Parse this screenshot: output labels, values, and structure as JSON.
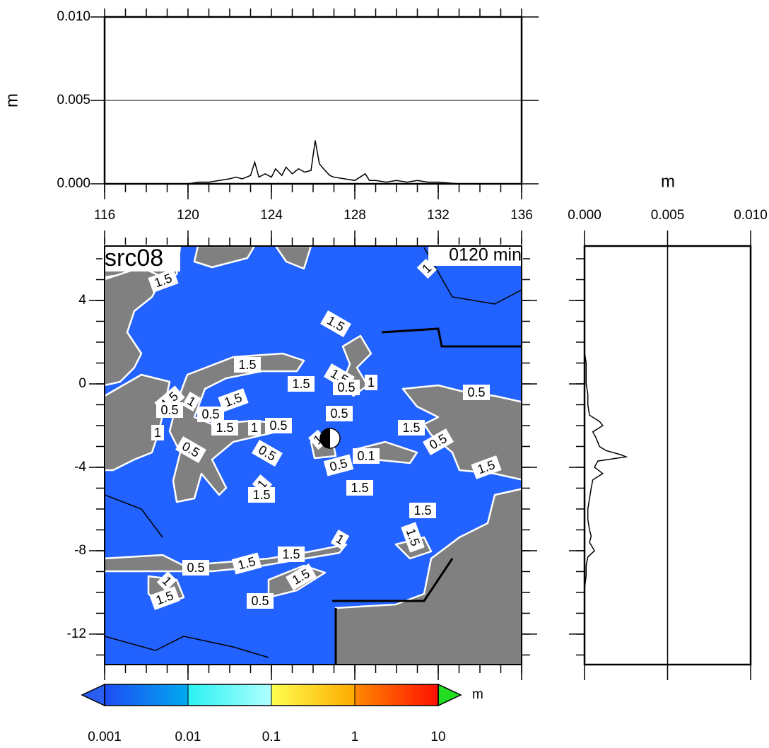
{
  "chart_data": [
    {
      "type": "line",
      "ylabel": "m",
      "color": "#000000",
      "grid": true,
      "x": [
        116,
        120,
        120.5,
        121,
        121.5,
        122,
        122.3,
        122.6,
        123,
        123.2,
        123.4,
        123.7,
        124,
        124.2,
        124.5,
        124.7,
        125,
        125.3,
        125.6,
        125.9,
        126.1,
        126.3,
        126.5,
        126.8,
        127,
        127.5,
        128,
        128.5,
        128.7,
        129,
        129.5,
        130,
        130.5,
        131,
        131.5,
        132,
        133,
        136
      ],
      "values": [
        0,
        0,
        0.0001,
        0.0001,
        0.0002,
        0.0003,
        0.0004,
        0.0003,
        0.0005,
        0.0013,
        0.0004,
        0.0006,
        0.0004,
        0.0009,
        0.0005,
        0.001,
        0.0006,
        0.0009,
        0.0007,
        0.0008,
        0.0026,
        0.0012,
        0.0009,
        0.0005,
        0.0004,
        0.0003,
        0.0002,
        0.0006,
        0.0002,
        0.0002,
        0.0001,
        0.0002,
        0.0001,
        0.0002,
        0.0001,
        0.0001,
        0,
        0
      ],
      "xlim": [
        116,
        136
      ],
      "xticks": [
        116,
        120,
        124,
        128,
        132,
        136
      ],
      "ylim": [
        0,
        0.01
      ],
      "yticks": [
        {
          "value": 0,
          "label": "0.000"
        },
        {
          "value": 0.005,
          "label": "0.005"
        },
        {
          "value": 0.01,
          "label": "0.010"
        }
      ]
    },
    {
      "type": "map",
      "title": "src08",
      "subtitle": "0120 min",
      "ocean_color": "#2262ff",
      "land_color": "#808080",
      "xlim": [
        116,
        136
      ],
      "xticks": [
        116,
        120,
        124,
        128,
        132,
        136
      ],
      "ylim": [
        -13.46,
        6.61
      ],
      "yticks": [
        4,
        0,
        -4,
        -8,
        -12
      ],
      "contour_labels": [
        "1.5",
        "1.5",
        "1.5",
        "1.5",
        "1.5",
        "0.5",
        "1",
        "0.5",
        "1.5",
        "0.5",
        "1",
        "0.5",
        "1.5",
        "1.5",
        "1",
        "0.5",
        "0.5",
        "1.5",
        "0.5",
        "1",
        "0.5",
        "0.5",
        "1",
        "0.5",
        "0.1",
        "1.5",
        "1",
        "1.5",
        "1.5",
        "1.5",
        "1.5",
        "1",
        "1.5",
        "1.5",
        "0.5",
        "1.5",
        "1",
        "1.5",
        "0.5",
        "1"
      ]
    },
    {
      "type": "line",
      "orientation": "horizontal",
      "xlabel": "m",
      "color": "#000000",
      "grid": true,
      "y": [
        6.6,
        1.5,
        1,
        0.5,
        0,
        -0.5,
        -1,
        -1.5,
        -1.8,
        -2,
        -2.3,
        -2.6,
        -3,
        -3.2,
        -3.4,
        -3.5,
        -3.7,
        -4,
        -4.3,
        -4.6,
        -5,
        -5.5,
        -6,
        -6.5,
        -7,
        -7.3,
        -7.6,
        -8,
        -8.3,
        -8.7,
        -9.2,
        -9.8,
        -13.4
      ],
      "values": [
        0,
        0,
        0.0001,
        0.0001,
        0.0001,
        0.0002,
        0.0002,
        0.0003,
        0.0009,
        0.0011,
        0.0005,
        0.0007,
        0.0009,
        0.0013,
        0.0022,
        0.0025,
        0.0008,
        0.0006,
        0.0011,
        0.0005,
        0.0004,
        0.0003,
        0.0002,
        0.0002,
        0.0003,
        0.0004,
        0.0003,
        0.0006,
        0.0002,
        0.0001,
        0.0001,
        0,
        0
      ],
      "xlim": [
        0,
        0.01
      ],
      "xticks": [
        {
          "value": 0,
          "label": "0.000"
        },
        {
          "value": 0.005,
          "label": "0.005"
        },
        {
          "value": 0.01,
          "label": "0.010"
        }
      ],
      "ylim": [
        -13.46,
        6.61
      ],
      "yticks": [
        4,
        0,
        -4,
        -8,
        -12
      ]
    },
    {
      "type": "colorbar",
      "label": "m",
      "log_scale": true,
      "xlim": [
        0.001,
        10
      ],
      "xticks": [
        0.001,
        0.01,
        0.1,
        1,
        10
      ],
      "colors": [
        [
          "#1e4cf5",
          "#00aaee"
        ],
        [
          "#2af2f2",
          "#b0ffff"
        ],
        [
          "#ffff50",
          "#ffaa00"
        ],
        [
          "#ff8800",
          "#ff1000"
        ]
      ],
      "extend_colors": [
        "#2a5ef0",
        "#22dd22"
      ]
    }
  ]
}
